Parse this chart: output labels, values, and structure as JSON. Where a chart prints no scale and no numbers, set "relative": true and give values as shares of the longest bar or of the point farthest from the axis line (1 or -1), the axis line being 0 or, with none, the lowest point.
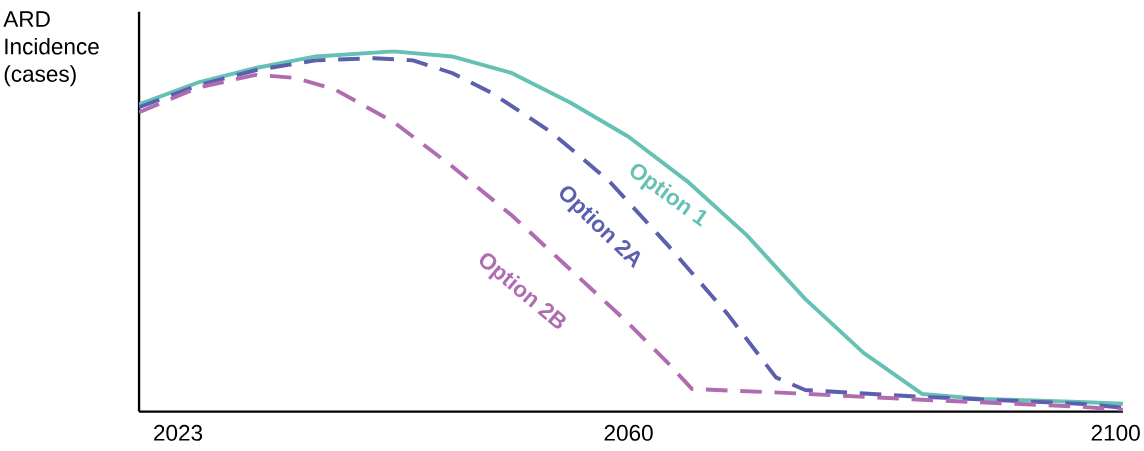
{
  "chart_data": {
    "type": "line",
    "relative": true,
    "ylabel": "ARD Incidence (cases)",
    "x": [
      2019.8,
      2024.6,
      2029.4,
      2034.3,
      2040.7,
      2045.5,
      2050.4,
      2055.2,
      2060,
      2064.8,
      2069.7,
      2074.5,
      2079.3,
      2084.1,
      2089,
      2097,
      2100.6
    ],
    "xlim": [
      2019.8,
      2100.6
    ],
    "xticks": [
      2023,
      2060,
      2100
    ],
    "grid": false,
    "legend": false,
    "marker": "none",
    "series": [
      {
        "name": "Option 1",
        "color": "#64c1b4",
        "line_style": "solid",
        "values": [
          0.853,
          0.913,
          0.954,
          0.986,
          1,
          0.986,
          0.94,
          0.858,
          0.763,
          0.64,
          0.49,
          0.313,
          0.163,
          0.049,
          0.035,
          0.027,
          0.022
        ]
      },
      {
        "name": "Option 2A",
        "color": "#5b5fae",
        "line_style": "dashed",
        "x": [
          2019.8,
          2024.6,
          2029.4,
          2034.3,
          2039.1,
          2042.3,
          2045.5,
          2048.7,
          2053.6,
          2058.4,
          2063.2,
          2068.1,
          2072.1,
          2074.5,
          2084.1,
          2097,
          2100.6
        ],
        "values": [
          0.845,
          0.905,
          0.948,
          0.975,
          0.981,
          0.975,
          0.94,
          0.886,
          0.777,
          0.64,
          0.463,
          0.272,
          0.095,
          0.06,
          0.041,
          0.022,
          0.011
        ]
      },
      {
        "name": "Option 2B",
        "color": "#b06cb0",
        "line_style": "dashed",
        "x": [
          2019.8,
          2024.6,
          2029.4,
          2032.7,
          2035.9,
          2040.7,
          2045.5,
          2050.4,
          2055.2,
          2060,
          2063.2,
          2065.2,
          2072.9,
          2084.1,
          2097,
          2100.6
        ],
        "values": [
          0.831,
          0.899,
          0.935,
          0.926,
          0.894,
          0.804,
          0.681,
          0.545,
          0.395,
          0.245,
          0.136,
          0.063,
          0.052,
          0.033,
          0.014,
          0.005
        ]
      }
    ]
  }
}
